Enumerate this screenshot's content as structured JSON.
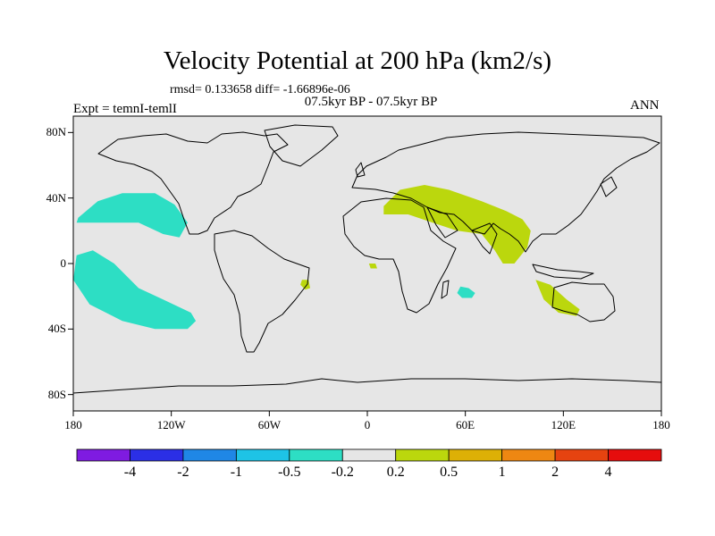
{
  "figure": {
    "title": "Velocity Potential at 200 hPa (km2/s)",
    "stats": "rmsd= 0.133658 diff= -1.66896e-06",
    "subtitle": "07.5kyr BP - 07.5kyr BP",
    "experiment": "Expt = temnI-temlI",
    "season": "ANN"
  },
  "map": {
    "projection": "cylindrical-equidistant",
    "lon_range": [
      -180,
      180
    ],
    "lat_range": [
      -90,
      90
    ],
    "background_color": "#e6e6e6",
    "x_ticks": [
      {
        "lon": -180,
        "label": "180"
      },
      {
        "lon": -120,
        "label": "120W"
      },
      {
        "lon": -60,
        "label": "60W"
      },
      {
        "lon": 0,
        "label": "0"
      },
      {
        "lon": 60,
        "label": "60E"
      },
      {
        "lon": 120,
        "label": "120E"
      },
      {
        "lon": 180,
        "label": "180"
      }
    ],
    "y_ticks": [
      {
        "lat": 80,
        "label": "80N"
      },
      {
        "lat": 40,
        "label": "40N"
      },
      {
        "lat": 0,
        "label": "0"
      },
      {
        "lat": -40,
        "label": "40S"
      },
      {
        "lat": -80,
        "label": "80S"
      }
    ]
  },
  "chart_data": {
    "type": "filled-contour-map",
    "title": "Velocity Potential at 200 hPa (km2/s)",
    "units": "km2/s",
    "regions": [
      {
        "name": "north-pacific-negative",
        "level_bin": "-0.5 to -0.2",
        "color": "#2ddec4",
        "outline": [
          [
            -177,
            28
          ],
          [
            -165,
            38
          ],
          [
            -150,
            43
          ],
          [
            -130,
            43
          ],
          [
            -118,
            36
          ],
          [
            -110,
            25
          ],
          [
            -115,
            16
          ],
          [
            -125,
            18
          ],
          [
            -140,
            25
          ],
          [
            -155,
            25
          ],
          [
            -170,
            25
          ],
          [
            -178,
            25
          ]
        ]
      },
      {
        "name": "south-pacific-negative",
        "level_bin": "-0.5 to -0.2",
        "color": "#2ddec4",
        "outline": [
          [
            -178,
            5
          ],
          [
            -168,
            8
          ],
          [
            -155,
            0
          ],
          [
            -140,
            -15
          ],
          [
            -125,
            -22
          ],
          [
            -108,
            -30
          ],
          [
            -105,
            -35
          ],
          [
            -110,
            -40
          ],
          [
            -130,
            -40
          ],
          [
            -150,
            -35
          ],
          [
            -170,
            -25
          ],
          [
            -180,
            -10
          ]
        ]
      },
      {
        "name": "indian-ocean-negative",
        "level_bin": "-0.5 to -0.2",
        "color": "#2ddec4",
        "outline": [
          [
            57,
            -14
          ],
          [
            62,
            -15
          ],
          [
            66,
            -18
          ],
          [
            64,
            -21
          ],
          [
            58,
            -21
          ],
          [
            55,
            -18
          ]
        ]
      },
      {
        "name": "eurasia-positive",
        "level_bin": "0.2 to 0.5",
        "color": "#bbd70d",
        "outline": [
          [
            10,
            35
          ],
          [
            20,
            45
          ],
          [
            35,
            48
          ],
          [
            50,
            45
          ],
          [
            70,
            38
          ],
          [
            85,
            32
          ],
          [
            95,
            27
          ],
          [
            100,
            20
          ],
          [
            98,
            10
          ],
          [
            90,
            0
          ],
          [
            83,
            0
          ],
          [
            78,
            8
          ],
          [
            70,
            18
          ],
          [
            55,
            20
          ],
          [
            40,
            25
          ],
          [
            25,
            30
          ],
          [
            10,
            30
          ]
        ]
      },
      {
        "name": "australia-positive",
        "level_bin": "0.2 to 0.5",
        "color": "#bbd70d",
        "outline": [
          [
            103,
            -10
          ],
          [
            112,
            -13
          ],
          [
            122,
            -22
          ],
          [
            130,
            -28
          ],
          [
            128,
            -32
          ],
          [
            117,
            -30
          ],
          [
            108,
            -22
          ]
        ]
      },
      {
        "name": "west-africa-positive",
        "level_bin": "0.2 to 0.5",
        "color": "#bbd70d",
        "outline": [
          [
            1,
            0
          ],
          [
            5,
            0
          ],
          [
            6,
            -3
          ],
          [
            2,
            -3
          ]
        ]
      },
      {
        "name": "brazil-coast-positive",
        "level_bin": "0.2 to 0.5",
        "color": "#bbd70d",
        "outline": [
          [
            -40,
            -10
          ],
          [
            -36,
            -10
          ],
          [
            -35,
            -15
          ],
          [
            -38,
            -16
          ],
          [
            -41,
            -13
          ]
        ]
      }
    ]
  },
  "colorbar": {
    "colors": [
      "#7f1be1",
      "#2b2fe6",
      "#1f87e6",
      "#1ec3e6",
      "#2ddec4",
      "#e6e6e6",
      "#bbd70d",
      "#ddb006",
      "#ee8712",
      "#e64310",
      "#e60d0d"
    ],
    "labels": [
      "-4",
      "-2",
      "-1",
      "-0.5",
      "-0.2",
      "0.2",
      "0.5",
      "1",
      "2",
      "4"
    ]
  }
}
